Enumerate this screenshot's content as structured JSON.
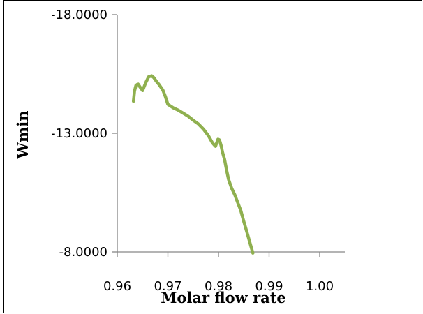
{
  "chart_data": {
    "type": "line",
    "title": "",
    "xlabel": "Molar flow rate",
    "ylabel": "Wmin",
    "xlim": [
      0.96,
      1.0
    ],
    "ylim": [
      -18.0,
      -8.0
    ],
    "y_inverted": true,
    "x_ticks": [
      "0.96",
      "0.97",
      "0.98",
      "0.99",
      "1.00"
    ],
    "y_ticks": [
      "-18.0000",
      "-13.0000",
      "-8.0000"
    ],
    "grid": false,
    "legend": "none",
    "line_color": "#8fb04f",
    "series": [
      {
        "x": [
          0.9632,
          0.9634,
          0.9637,
          0.9641,
          0.9645,
          0.965,
          0.9656,
          0.9662,
          0.9668,
          0.9672,
          0.9677,
          0.9683,
          0.969,
          0.9695,
          0.97,
          0.971,
          0.972,
          0.973,
          0.974,
          0.975,
          0.976,
          0.977,
          0.978,
          0.9788,
          0.9794,
          0.9799,
          0.9802,
          0.9805,
          0.9808,
          0.9812,
          0.9816,
          0.982,
          0.9826,
          0.9832,
          0.9838,
          0.9844,
          0.985,
          0.9856,
          0.9862,
          0.9868
        ],
        "y": [
          -14.35,
          -14.78,
          -15.02,
          -15.08,
          -14.95,
          -14.8,
          -15.12,
          -15.38,
          -15.42,
          -15.35,
          -15.2,
          -15.04,
          -14.82,
          -14.55,
          -14.22,
          -14.08,
          -13.98,
          -13.85,
          -13.72,
          -13.55,
          -13.4,
          -13.18,
          -12.9,
          -12.6,
          -12.45,
          -12.75,
          -12.72,
          -12.5,
          -12.2,
          -11.9,
          -11.45,
          -11.05,
          -10.68,
          -10.42,
          -10.08,
          -9.75,
          -9.28,
          -8.85,
          -8.4,
          -7.95
        ]
      }
    ]
  }
}
